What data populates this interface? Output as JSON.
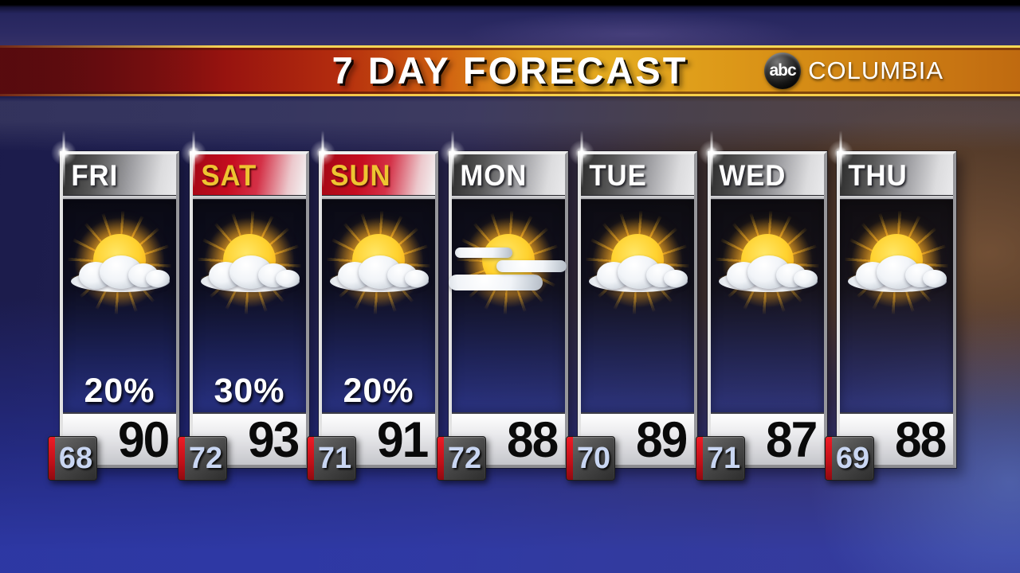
{
  "banner": {
    "title": "7 DAY FORECAST",
    "station": {
      "logo": "abc",
      "name": "COLUMBIA"
    }
  },
  "forecast": {
    "days": [
      {
        "name": "FRI",
        "icon": "sun-behind-cloud",
        "precip": "20%",
        "high": "90",
        "low": "68",
        "weekend": false
      },
      {
        "name": "SAT",
        "icon": "sun-behind-cloud",
        "precip": "30%",
        "high": "93",
        "low": "72",
        "weekend": true
      },
      {
        "name": "SUN",
        "icon": "sun-behind-cloud",
        "precip": "20%",
        "high": "91",
        "low": "71",
        "weekend": true
      },
      {
        "name": "MON",
        "icon": "sun-with-wispy-clouds",
        "precip": "",
        "high": "88",
        "low": "72",
        "weekend": false
      },
      {
        "name": "TUE",
        "icon": "sun-behind-cloud",
        "precip": "",
        "high": "89",
        "low": "70",
        "weekend": false
      },
      {
        "name": "WED",
        "icon": "sun-behind-cloud",
        "precip": "",
        "high": "87",
        "low": "71",
        "weekend": false
      },
      {
        "name": "THU",
        "icon": "sun-behind-cloud",
        "precip": "",
        "high": "88",
        "low": "69",
        "weekend": false
      }
    ]
  },
  "colors": {
    "banner_gold": "#e5ac20",
    "banner_red": "#97130f",
    "weekend_red": "#c60d20",
    "weekend_gold_text": "#eec431",
    "low_badge_text": "#c9d6f2",
    "low_badge_red_strip": "#ee1c26",
    "bottom_blue": "#303cb2",
    "card_navy": "#13142e"
  }
}
